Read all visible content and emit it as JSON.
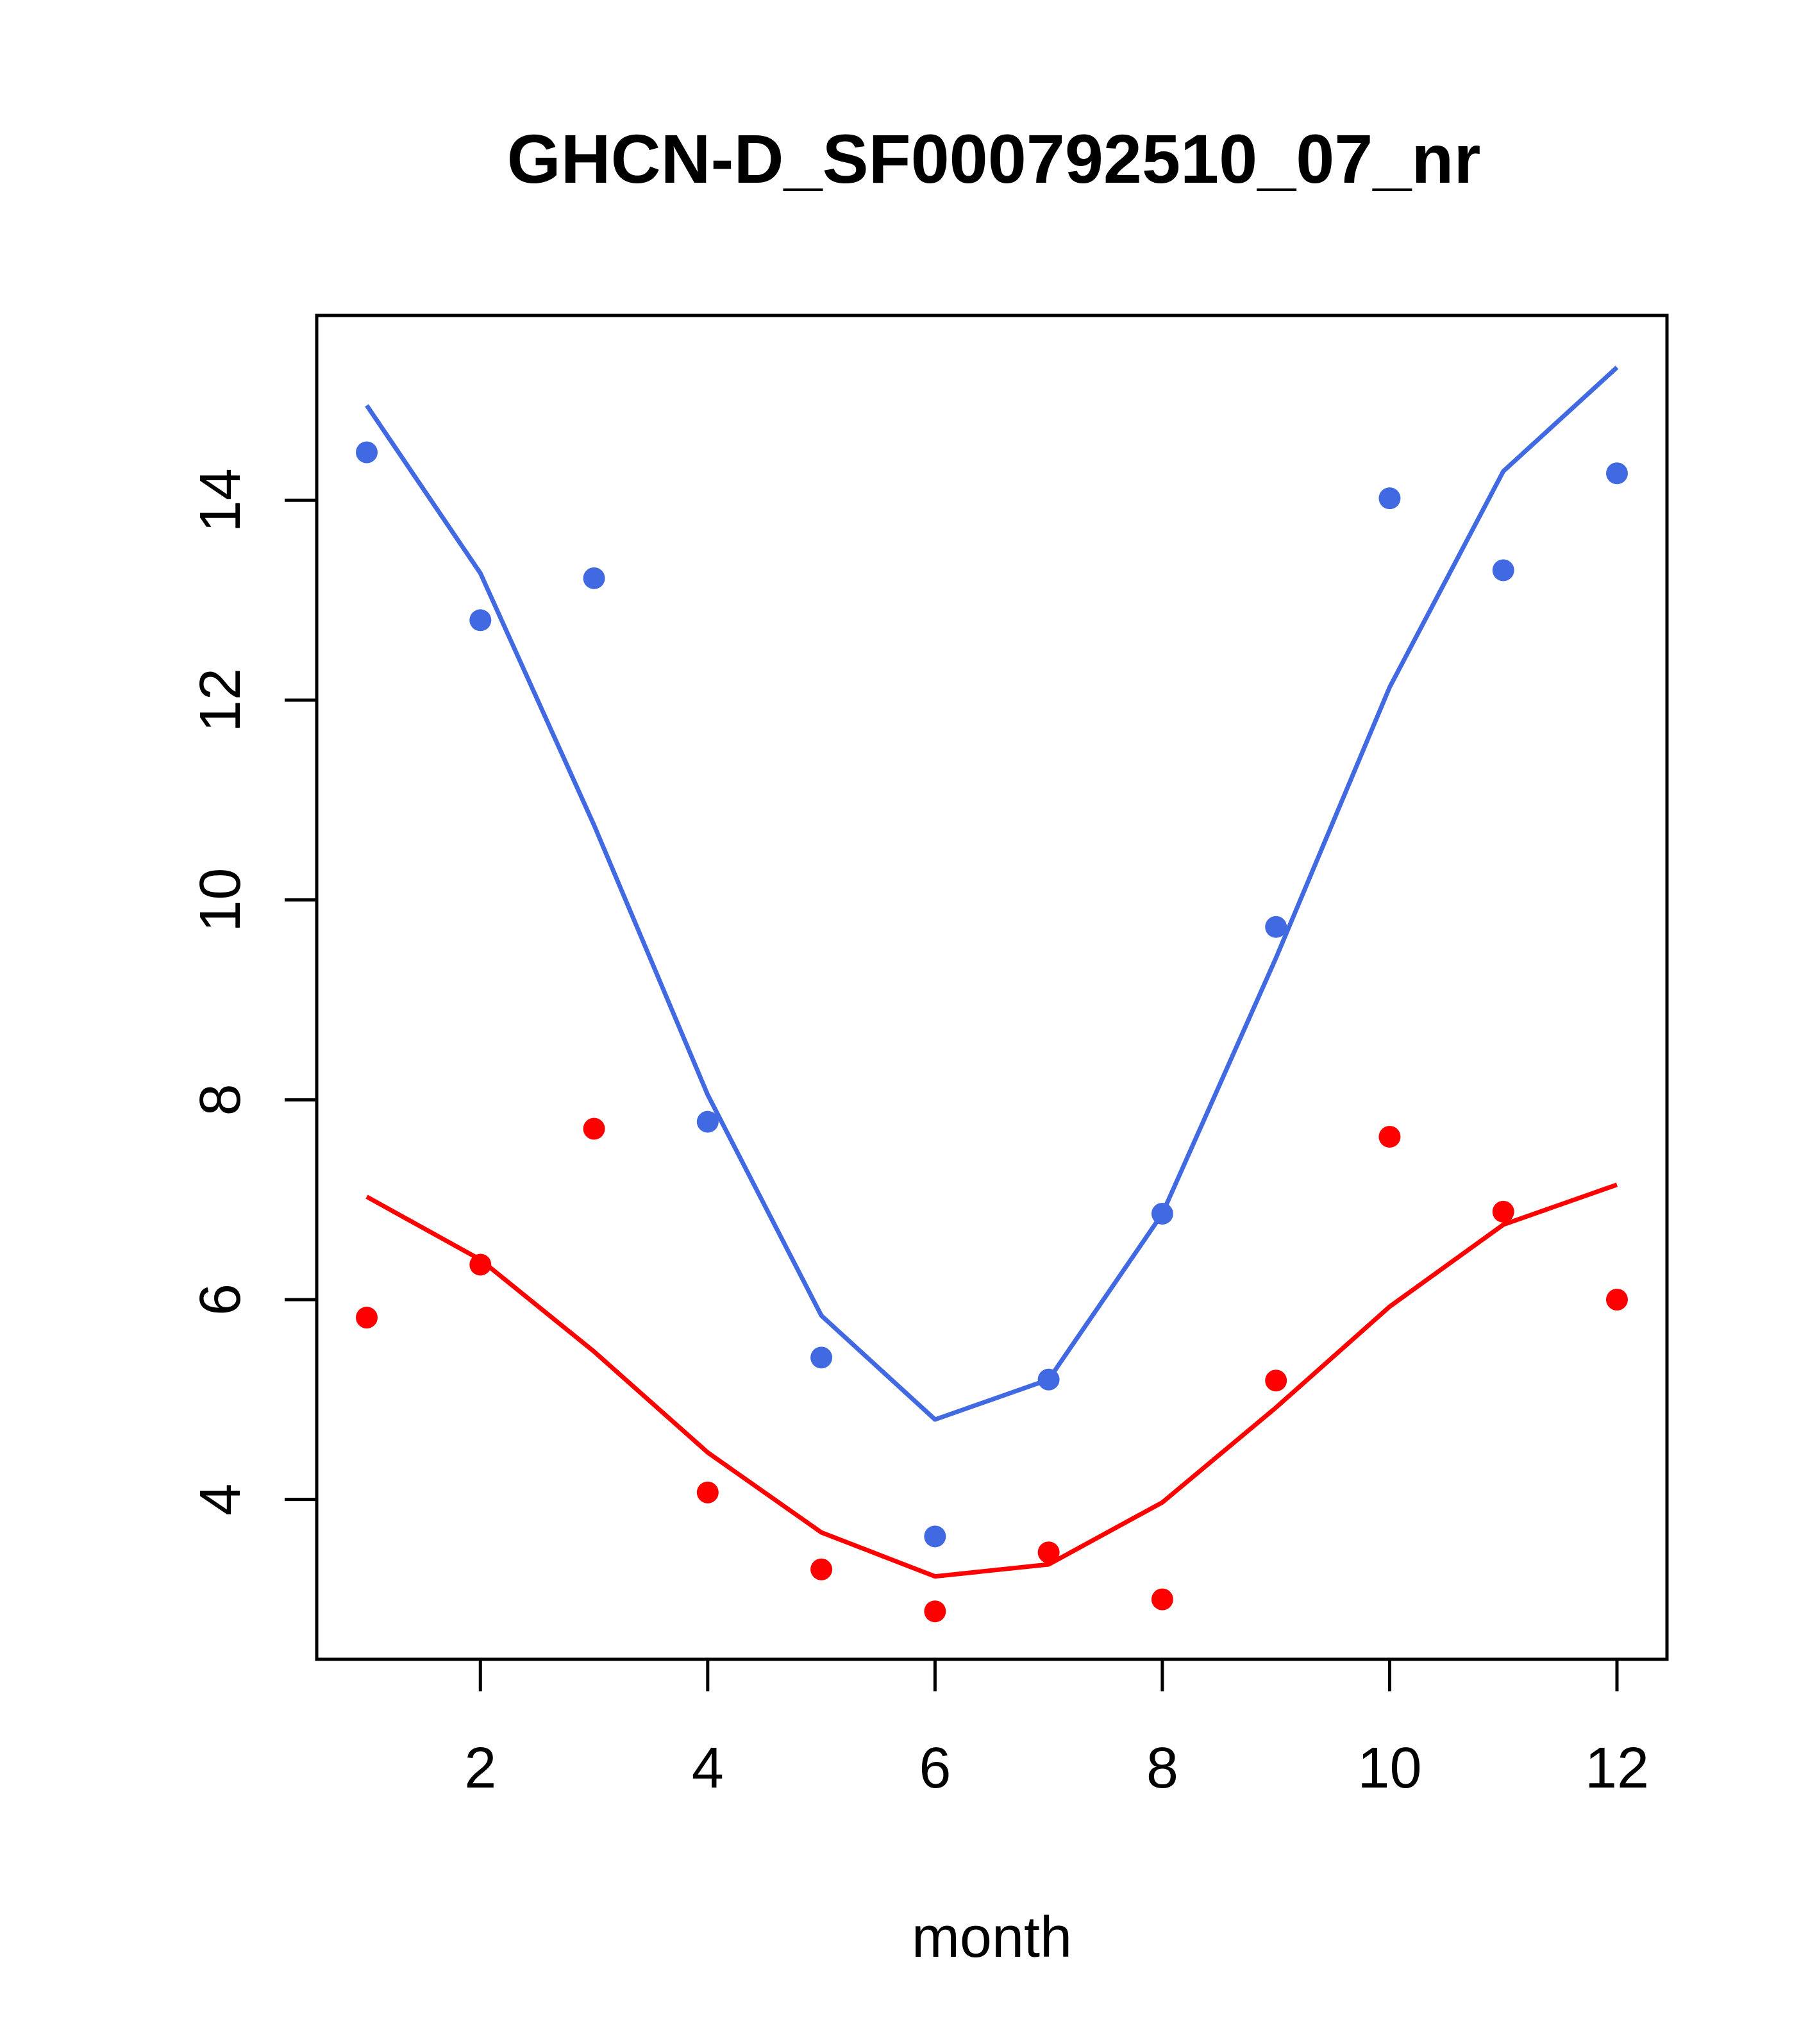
{
  "chart_data": {
    "type": "scatter",
    "title": "GHCN-D_SF000792510_07_nr",
    "xlabel": "month",
    "ylabel": "",
    "xlim": [
      0.56,
      12.44
    ],
    "ylim": [
      2.4,
      15.85
    ],
    "xticks": [
      2,
      4,
      6,
      8,
      10,
      12
    ],
    "yticks": [
      4,
      6,
      8,
      10,
      12,
      14
    ],
    "grid": false,
    "series": [
      {
        "color": "#4169E1",
        "x": [
          1,
          2,
          3,
          4,
          5,
          6,
          7,
          8,
          9,
          10,
          11,
          12
        ],
        "points": [
          14.48,
          12.8,
          13.22,
          7.78,
          5.42,
          3.63,
          5.2,
          6.86,
          9.73,
          14.02,
          13.3,
          14.27
        ],
        "line": [
          14.95,
          13.27,
          10.75,
          8.05,
          5.84,
          4.8,
          5.2,
          6.86,
          9.42,
          12.13,
          14.29,
          15.33
        ]
      },
      {
        "color": "#FF0000",
        "x": [
          1,
          2,
          3,
          4,
          5,
          6,
          7,
          8,
          9,
          10,
          11,
          12
        ],
        "points": [
          5.82,
          6.35,
          7.71,
          4.07,
          3.3,
          2.88,
          3.47,
          3.0,
          5.19,
          7.63,
          6.88,
          6.0
        ],
        "line": [
          7.03,
          6.4,
          5.48,
          4.47,
          3.67,
          3.23,
          3.35,
          3.97,
          4.92,
          5.93,
          6.75,
          7.15
        ]
      }
    ]
  }
}
